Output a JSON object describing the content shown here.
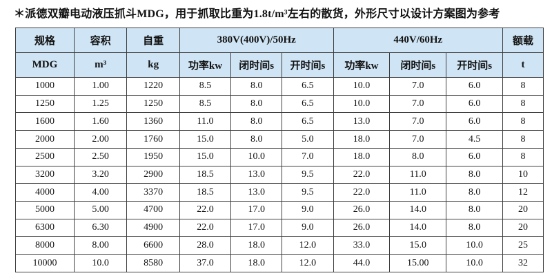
{
  "title": "＊派德双瓣电动液压抓斗MDG，用于抓取比重为1.8t/m³左右的散货，外形尺寸以设计方案图为参考",
  "colors": {
    "header_bg": "#cfe4f4",
    "border": "#3d3d3d",
    "text": "#111111"
  },
  "table": {
    "h1": {
      "spec": "规格",
      "capacity": "容积",
      "weight": "自重",
      "hz50": "380V(400V)/50Hz",
      "hz60": "440V/60Hz",
      "rated": "额载"
    },
    "h2": {
      "model": "MDG",
      "cap_unit": "m³",
      "wt_unit": "kg",
      "p50": "功率kw",
      "c50": "闭时间s",
      "o50": "开时间s",
      "p60": "功率kw",
      "c60": "闭时间s",
      "o60": "开时间s",
      "load_unit": "t"
    },
    "rows": [
      [
        "1000",
        "1.00",
        "1220",
        "8.5",
        "8.0",
        "6.5",
        "10.0",
        "7.0",
        "6.0",
        "8"
      ],
      [
        "1250",
        "1.25",
        "1250",
        "8.5",
        "8.0",
        "6.5",
        "10.0",
        "7.0",
        "6.0",
        "8"
      ],
      [
        "1600",
        "1.60",
        "1360",
        "11.0",
        "8.0",
        "6.5",
        "13.0",
        "7.0",
        "6.0",
        "8"
      ],
      [
        "2000",
        "2.00",
        "1760",
        "15.0",
        "8.0",
        "5.0",
        "18.0",
        "7.0",
        "4.5",
        "8"
      ],
      [
        "2500",
        "2.50",
        "1950",
        "15.0",
        "10.0",
        "7.0",
        "18.0",
        "8.0",
        "6.0",
        "8"
      ],
      [
        "3200",
        "3.20",
        "2900",
        "18.5",
        "13.0",
        "9.5",
        "22.0",
        "11.0",
        "8.0",
        "10"
      ],
      [
        "4000",
        "4.00",
        "3370",
        "18.5",
        "13.0",
        "9.5",
        "22.0",
        "11.0",
        "8.0",
        "12"
      ],
      [
        "5000",
        "5.00",
        "4700",
        "22.0",
        "17.0",
        "9.0",
        "26.0",
        "14.0",
        "8.0",
        "20"
      ],
      [
        "6300",
        "6.30",
        "4900",
        "22.0",
        "17.0",
        "9.0",
        "26.0",
        "14.0",
        "8.0",
        "20"
      ],
      [
        "8000",
        "8.00",
        "6600",
        "28.0",
        "18.0",
        "12.0",
        "33.0",
        "15.0",
        "10.0",
        "25"
      ],
      [
        "10000",
        "10.0",
        "8580",
        "37.0",
        "18.0",
        "12.0",
        "44.0",
        "15.00",
        "10.0",
        "32"
      ]
    ]
  }
}
